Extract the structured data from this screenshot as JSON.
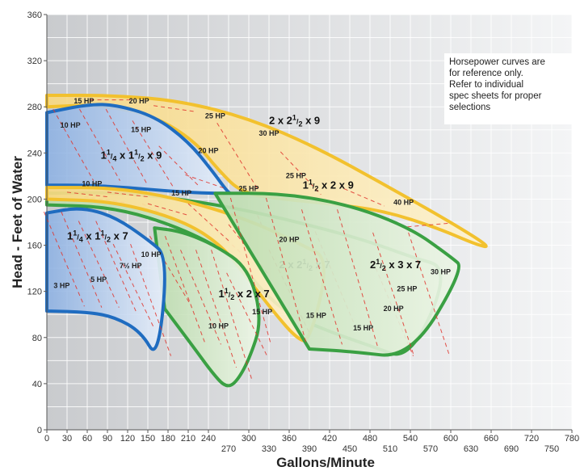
{
  "chart_data": {
    "type": "area",
    "xlabel": "Gallons/Minute",
    "ylabel": "Head - Feet of Water",
    "xlim": [
      0,
      750
    ],
    "ylim": [
      0,
      360
    ],
    "x_ticks_upper": [
      "0",
      "30",
      "60",
      "90",
      "120",
      "150",
      "180",
      "210",
      "240",
      "300",
      "360",
      "420",
      "480",
      "540",
      "600",
      "660",
      "720",
      "780"
    ],
    "x_ticks_upper_values": [
      0,
      30,
      60,
      90,
      120,
      150,
      180,
      210,
      240,
      300,
      360,
      420,
      480,
      540,
      600,
      660,
      720,
      780
    ],
    "x_ticks_lower": [
      "270",
      "330",
      "390",
      "450",
      "510",
      "570",
      "630",
      "690",
      "750"
    ],
    "x_ticks_lower_values": [
      270,
      330,
      390,
      450,
      510,
      570,
      630,
      690,
      750
    ],
    "y_ticks": [
      "0",
      "40",
      "80",
      "120",
      "160",
      "200",
      "240",
      "280",
      "320",
      "360"
    ],
    "y_tick_values": [
      0,
      40,
      80,
      120,
      160,
      200,
      240,
      280,
      320,
      360
    ],
    "note": "Horsepower curves are for reference only. Refer to individual spec sheets for proper selections",
    "note_lines": [
      "Horsepower curves are",
      "for reference only.",
      "Refer to individual",
      "spec sheets for proper",
      "selections"
    ],
    "regions": [
      {
        "name": "2 x 2½ x 9",
        "label": {
          "main": "2 x 2",
          "sup": "1",
          "den": "2",
          "tail": " x 9"
        },
        "label_at": [
          330,
          265
        ],
        "fill": "#fbe6a8",
        "stroke": "#f2c12e",
        "upper": [
          [
            0,
            290
          ],
          [
            100,
            290
          ],
          [
            200,
            285
          ],
          [
            300,
            270
          ],
          [
            400,
            245
          ],
          [
            500,
            213
          ],
          [
            600,
            180
          ],
          [
            660,
            158
          ]
        ],
        "lower": [
          [
            0,
            280
          ],
          [
            80,
            282
          ],
          [
            160,
            272
          ],
          [
            220,
            250
          ],
          [
            255,
            225
          ],
          [
            290,
            205
          ],
          [
            350,
            200
          ],
          [
            420,
            196
          ],
          [
            500,
            190
          ],
          [
            580,
            175
          ],
          [
            640,
            160
          ]
        ],
        "hp_labels": [
          {
            "text": "15 HP",
            "x": 40,
            "y": 283
          },
          {
            "text": "20 HP",
            "x": 122,
            "y": 283
          },
          {
            "text": "25 HP",
            "x": 235,
            "y": 270
          },
          {
            "text": "30 HP",
            "x": 315,
            "y": 255
          },
          {
            "text": "25 HP",
            "x": 355,
            "y": 218
          },
          {
            "text": "40 HP",
            "x": 515,
            "y": 195
          }
        ]
      },
      {
        "name": "1¼ x 1½ x 9",
        "label": {
          "main": "1",
          "sup": "1",
          "den": "4",
          "tail": " x 1",
          "sup2": "1",
          "den2": "2",
          "tail2": " x 9"
        },
        "label_at": [
          80,
          235
        ],
        "fill": "#b8cfee",
        "stroke": "#1f6cc0",
        "upper": [
          [
            0,
            275
          ],
          [
            60,
            282
          ],
          [
            100,
            282
          ],
          [
            160,
            272
          ],
          [
            210,
            250
          ],
          [
            245,
            225
          ],
          [
            270,
            205
          ]
        ],
        "lower": [
          [
            0,
            212
          ],
          [
            60,
            212
          ],
          [
            120,
            210
          ],
          [
            180,
            207
          ],
          [
            240,
            205
          ],
          [
            275,
            205
          ]
        ],
        "hp_labels": [
          {
            "text": "10 HP",
            "x": 20,
            "y": 262
          },
          {
            "text": "15 HP",
            "x": 125,
            "y": 258
          },
          {
            "text": "20 HP",
            "x": 225,
            "y": 240
          },
          {
            "text": "25 HP",
            "x": 285,
            "y": 207
          },
          {
            "text": "10 HP",
            "x": 52,
            "y": 211
          },
          {
            "text": "15 HP",
            "x": 185,
            "y": 203
          }
        ]
      },
      {
        "name": "1½ x 2 x 9",
        "label": {
          "main": "1",
          "sup": "1",
          "den": "2",
          "tail": " x 2 x 9"
        },
        "label_at": [
          380,
          209
        ],
        "fill": "#d8eacb",
        "stroke": "#3aa043",
        "upper": [
          [
            0,
            205
          ],
          [
            100,
            206
          ],
          [
            200,
            200
          ],
          [
            300,
            190
          ],
          [
            400,
            176
          ],
          [
            480,
            163
          ],
          [
            540,
            150
          ],
          [
            600,
            140
          ]
        ],
        "lower": [
          [
            0,
            195
          ],
          [
            100,
            193
          ],
          [
            200,
            175
          ],
          [
            280,
            150
          ],
          [
            320,
            120
          ],
          [
            360,
            100
          ],
          [
            420,
            85
          ],
          [
            480,
            73
          ],
          [
            540,
            60
          ]
        ],
        "hp_labels": [
          {
            "text": "20 HP",
            "x": 345,
            "y": 163
          }
        ]
      },
      {
        "name": "2 x 2½ x 7",
        "label": {
          "main": "2 x 2",
          "sup": "1",
          "den": "2",
          "tail": " x 7"
        },
        "label_at": [
          345,
          140
        ],
        "fill": "#fbe6a8",
        "stroke": "#f2c12e",
        "upper": [
          [
            0,
            210
          ],
          [
            100,
            210
          ],
          [
            200,
            200
          ],
          [
            300,
            182
          ],
          [
            380,
            160
          ],
          [
            420,
            148
          ]
        ],
        "lower": [
          [
            0,
            200
          ],
          [
            100,
            198
          ],
          [
            200,
            182
          ],
          [
            260,
            160
          ],
          [
            300,
            130
          ],
          [
            340,
            100
          ],
          [
            370,
            80
          ],
          [
            390,
            75
          ]
        ],
        "hp_labels": [
          {
            "text": "15 HP",
            "x": 385,
            "y": 97
          }
        ]
      },
      {
        "name": "2½ x 3 x 7",
        "label": {
          "main": "2",
          "sup": "1",
          "den": "2",
          "tail": " x 3 x 7"
        },
        "label_at": [
          480,
          140
        ],
        "fill": "#d8eacb",
        "stroke": "#3aa043",
        "upper": [
          [
            250,
            205
          ],
          [
            350,
            205
          ],
          [
            450,
            195
          ],
          [
            540,
            175
          ],
          [
            600,
            150
          ],
          [
            620,
            140
          ]
        ],
        "lower": [
          [
            390,
            70
          ],
          [
            450,
            68
          ],
          [
            540,
            62
          ]
        ],
        "hp_labels": [
          {
            "text": "30 HP",
            "x": 570,
            "y": 135
          },
          {
            "text": "25 HP",
            "x": 520,
            "y": 120
          },
          {
            "text": "20 HP",
            "x": 500,
            "y": 103
          },
          {
            "text": "15 HP",
            "x": 455,
            "y": 86
          }
        ]
      },
      {
        "name": "1½ x 2 x 7",
        "label": {
          "main": "1",
          "sup": "1",
          "den": "2",
          "tail": " x 2 x 7"
        },
        "label_at": [
          255,
          115
        ],
        "fill": "#d8eacb",
        "stroke": "#3aa043",
        "upper": [
          [
            160,
            175
          ],
          [
            200,
            172
          ],
          [
            250,
            160
          ],
          [
            300,
            140
          ]
        ],
        "lower": [
          [
            175,
            105
          ],
          [
            220,
            70
          ],
          [
            245,
            50
          ],
          [
            265,
            37
          ],
          [
            280,
            40
          ],
          [
            300,
            60
          ],
          [
            320,
            95
          ]
        ],
        "hp_labels": [
          {
            "text": "10 HP",
            "x": 240,
            "y": 88
          },
          {
            "text": "15 HP",
            "x": 305,
            "y": 100
          }
        ]
      },
      {
        "name": "1¼ x 1½ x 7",
        "label": {
          "main": "1",
          "sup": "1",
          "den": "4",
          "tail": " x 1",
          "sup2": "1",
          "den2": "2",
          "tail2": " x 7"
        },
        "label_at": [
          30,
          165
        ],
        "fill": "#b8cfee",
        "stroke": "#1f6cc0",
        "upper": [
          [
            0,
            188
          ],
          [
            50,
            193
          ],
          [
            100,
            185
          ],
          [
            150,
            165
          ],
          [
            180,
            150
          ]
        ],
        "lower": [
          [
            0,
            103
          ],
          [
            60,
            102
          ],
          [
            100,
            98
          ],
          [
            140,
            85
          ],
          [
            165,
            60
          ]
        ],
        "hp_labels": [
          {
            "text": "3 HP",
            "x": 10,
            "y": 123
          },
          {
            "text": "5 HP",
            "x": 65,
            "y": 128
          },
          {
            "text": "7½ HP",
            "x": 108,
            "y": 140
          },
          {
            "text": "10 HP",
            "x": 140,
            "y": 150
          }
        ]
      }
    ]
  }
}
